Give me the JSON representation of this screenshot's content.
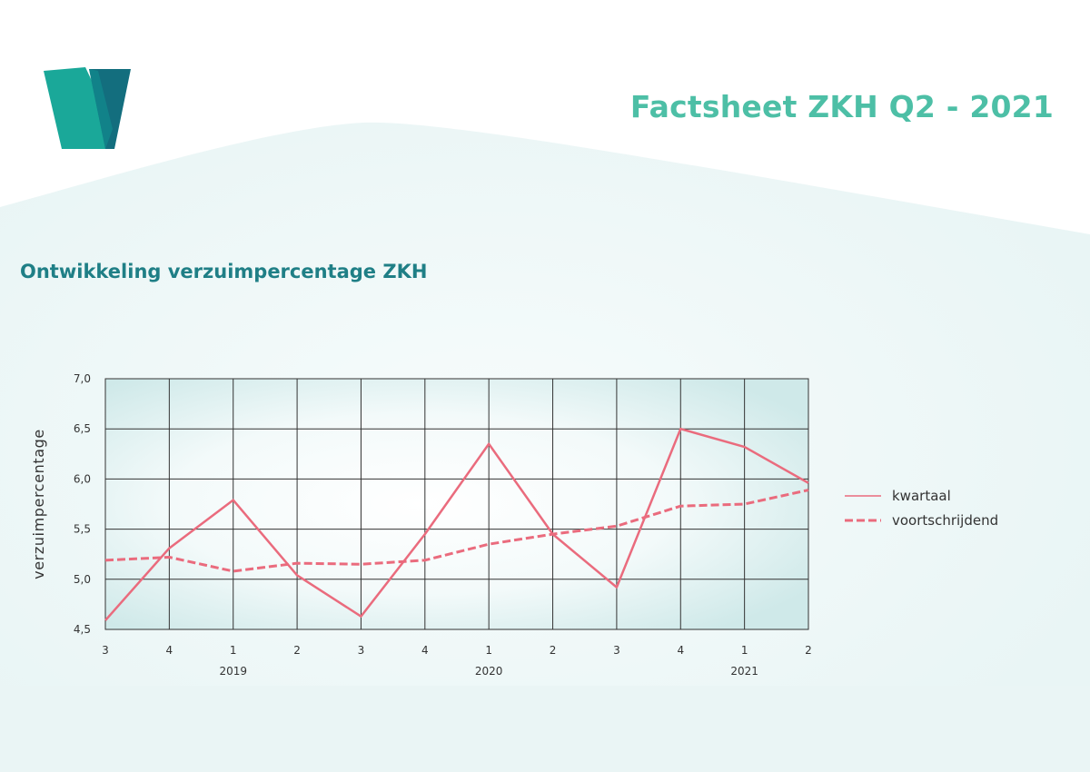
{
  "header": {
    "title": "Factsheet ZKH Q2 - 2021",
    "logo": "v-logo"
  },
  "section": {
    "subtitle": "Ontwikkeling verzuimpercentage ZKH"
  },
  "colors": {
    "accent": "#4dbfa6",
    "subtitle": "#1f7f86",
    "series": "#ea6b7d",
    "background_panel": "#eef7f7",
    "logo_left": "#1aa899",
    "logo_right": "#136e7e"
  },
  "chart_data": {
    "type": "line",
    "categories": [
      "3",
      "4",
      "1",
      "2",
      "3",
      "4",
      "1",
      "2",
      "3",
      "4",
      "1",
      "2"
    ],
    "year_labels": [
      {
        "label": "2019",
        "category_index": 2
      },
      {
        "label": "2020",
        "category_index": 6
      },
      {
        "label": "2021",
        "category_index": 10
      }
    ],
    "series": [
      {
        "name": "kwartaal",
        "style": "solid",
        "values": [
          4.59,
          5.31,
          5.79,
          5.04,
          4.63,
          5.45,
          6.35,
          5.45,
          4.92,
          6.5,
          6.32,
          5.96
        ]
      },
      {
        "name": "voortschrijdend",
        "style": "dashed",
        "values": [
          5.19,
          5.22,
          5.08,
          5.16,
          5.15,
          5.19,
          5.35,
          5.45,
          5.53,
          5.73,
          5.75,
          5.89
        ]
      }
    ],
    "ylabel": "verzuimpercentage",
    "xlabel": "",
    "ylim": [
      4.5,
      7.0
    ],
    "yticks": [
      "4,5",
      "5,0",
      "5,5",
      "6,0",
      "6,5",
      "7,0"
    ],
    "grid": true,
    "legend_position": "right"
  }
}
